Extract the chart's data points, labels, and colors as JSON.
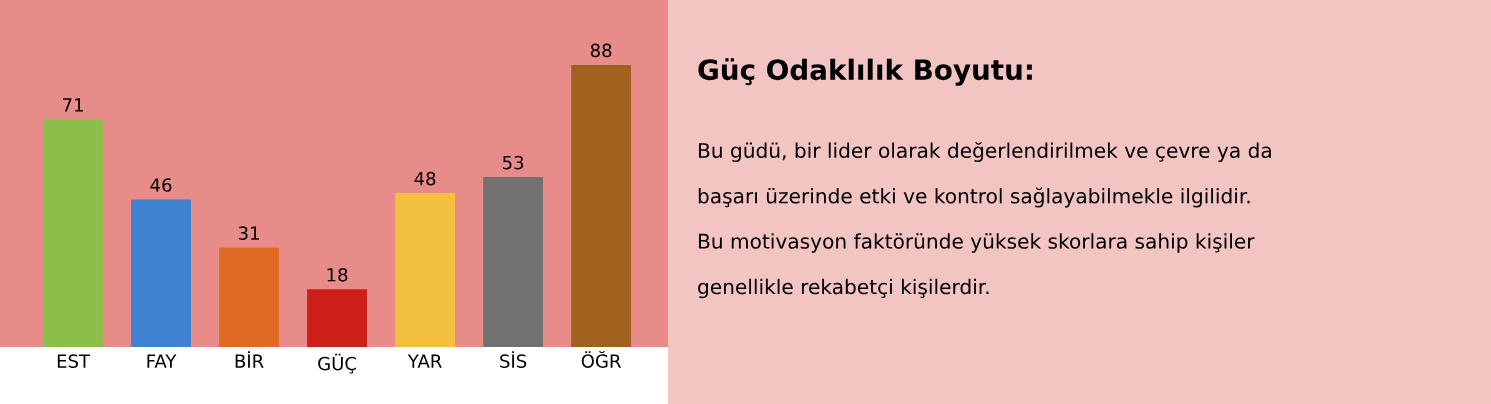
{
  "chart_data": [
    {
      "type": "bar",
      "categories": [
        "EST",
        "FAY",
        "BİR",
        "GÜÇ",
        "YAR",
        "SİS",
        "ÖĞR"
      ],
      "values": [
        71,
        46,
        31,
        18,
        48,
        53,
        88
      ],
      "colors": [
        "#8cbf4a",
        "#3f82d0",
        "#e06a24",
        "#cc1f18",
        "#f2bf40",
        "#717171",
        "#a2621f"
      ],
      "data_labels": true,
      "grid": false,
      "legend": false
    },
    {
      "type": "other",
      "title": "Güç Odaklılık Boyutu:",
      "annotations": [
        "Bu güdü, bir lider olarak değerlendirilmek ve çevre ya da",
        "başarı üzerinde etki ve kontrol sağlayabilmekle ilgilidir.",
        "Bu motivasyon faktöründe yüksek skorlara sahip kişiler",
        "genellikle rekabetçi kişilerdir."
      ]
    }
  ]
}
